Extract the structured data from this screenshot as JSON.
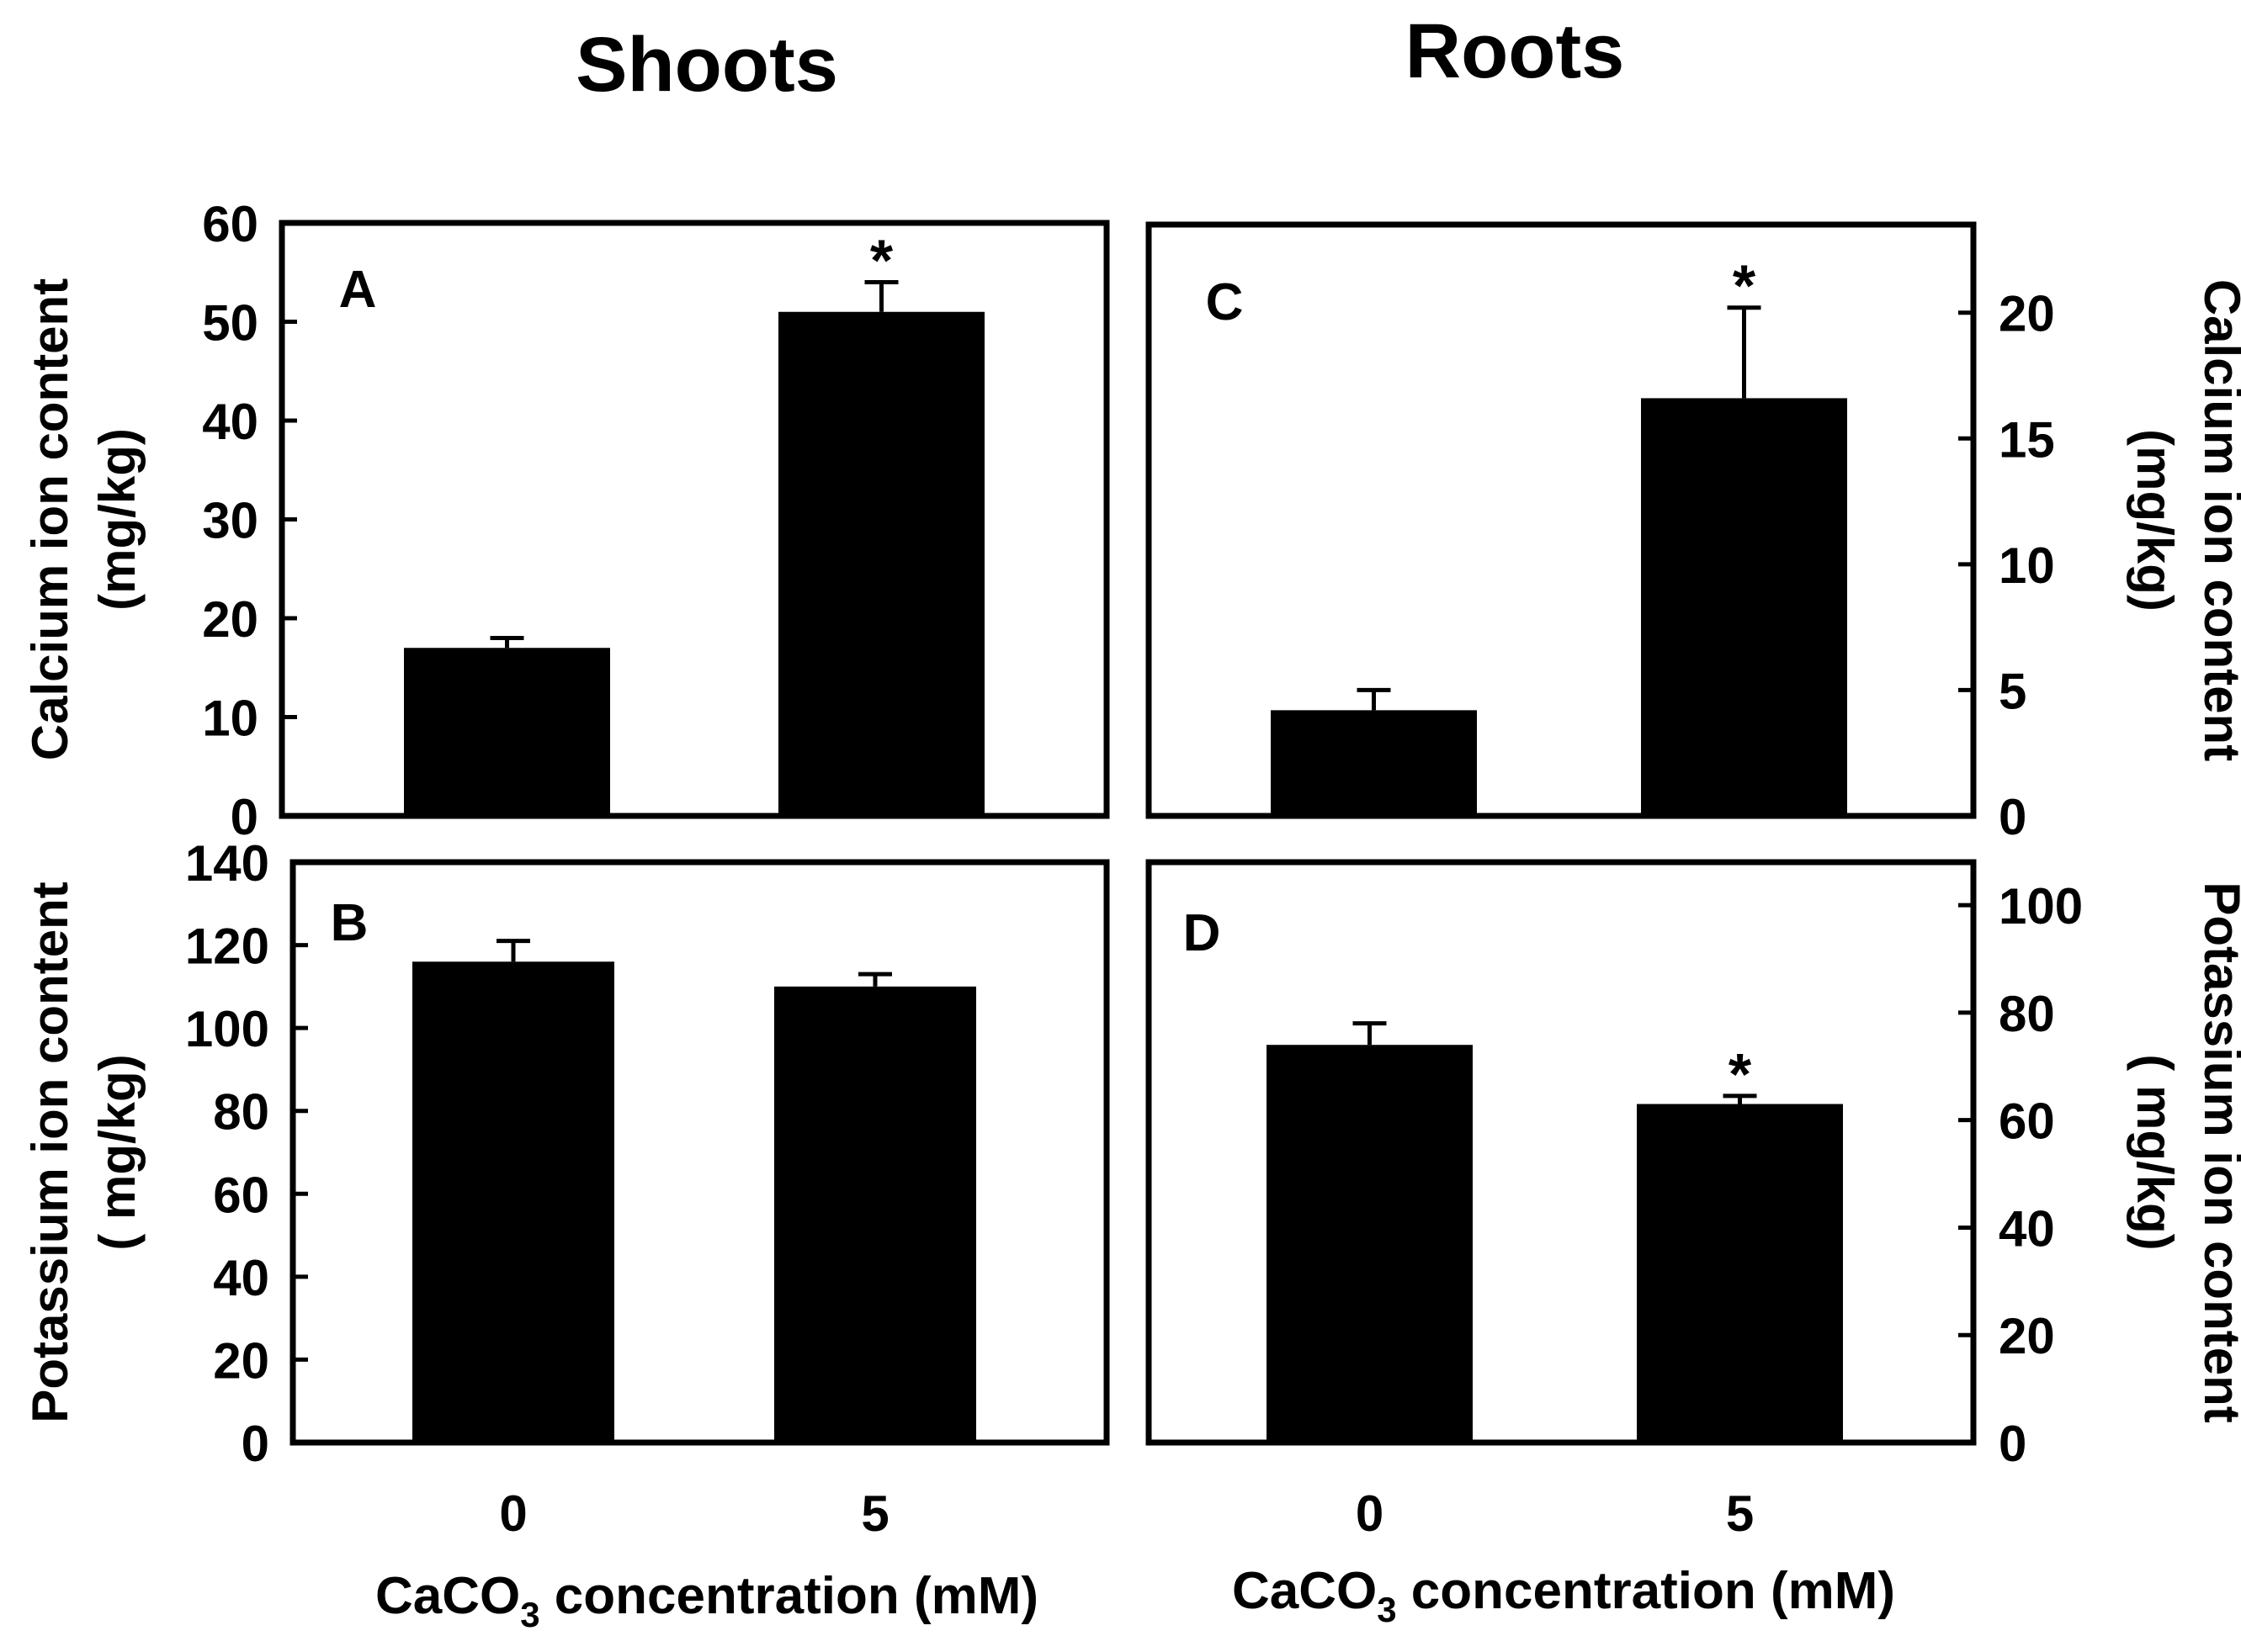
{
  "headers": {
    "shoots": "Shoots",
    "roots": "Roots"
  },
  "xaxis": {
    "label_main": "CaCO",
    "label_sub": "3",
    "label_rest": " concentration (mM)"
  },
  "chart_data": [
    {
      "id": "A",
      "type": "bar",
      "panel_label": "A",
      "categories": [
        "0",
        "5"
      ],
      "values": [
        17,
        51
      ],
      "errors": [
        1,
        3
      ],
      "significance": [
        "",
        "*"
      ],
      "ylim": [
        0,
        60
      ],
      "yticks": [
        0,
        10,
        20,
        30,
        40,
        50,
        60
      ],
      "ylabel": [
        "Calcium ion content",
        "(mg/kg)"
      ],
      "y_axis_side": "left",
      "show_x_ticklabels": false
    },
    {
      "id": "B",
      "type": "bar",
      "panel_label": "B",
      "categories": [
        "0",
        "5"
      ],
      "values": [
        116,
        110
      ],
      "errors": [
        5,
        3
      ],
      "significance": [
        "",
        ""
      ],
      "ylim": [
        0,
        140
      ],
      "yticks": [
        0,
        20,
        40,
        60,
        80,
        100,
        120,
        140
      ],
      "ylabel": [
        "Potassium ion content",
        "( mg/kg)"
      ],
      "y_axis_side": "left",
      "show_x_ticklabels": true
    },
    {
      "id": "C",
      "type": "bar",
      "panel_label": "C",
      "categories": [
        "0",
        "5"
      ],
      "values": [
        4.2,
        16.6
      ],
      "errors": [
        0.8,
        3.6
      ],
      "significance": [
        "",
        "*"
      ],
      "ylim": [
        0,
        23.5
      ],
      "yticks": [
        0,
        5,
        10,
        15,
        20
      ],
      "ylabel": [
        "Calcium ion content",
        "(mg/kg)"
      ],
      "y_axis_side": "right",
      "show_x_ticklabels": false
    },
    {
      "id": "D",
      "type": "bar",
      "panel_label": "D",
      "categories": [
        "0",
        "5"
      ],
      "values": [
        74,
        63
      ],
      "errors": [
        4,
        1.5
      ],
      "significance": [
        "",
        "*"
      ],
      "ylim": [
        0,
        108
      ],
      "yticks": [
        0,
        20,
        40,
        60,
        80,
        100
      ],
      "ylabel": [
        "Potassium ion content",
        "( mg/kg)"
      ],
      "y_axis_side": "right",
      "show_x_ticklabels": true
    }
  ]
}
